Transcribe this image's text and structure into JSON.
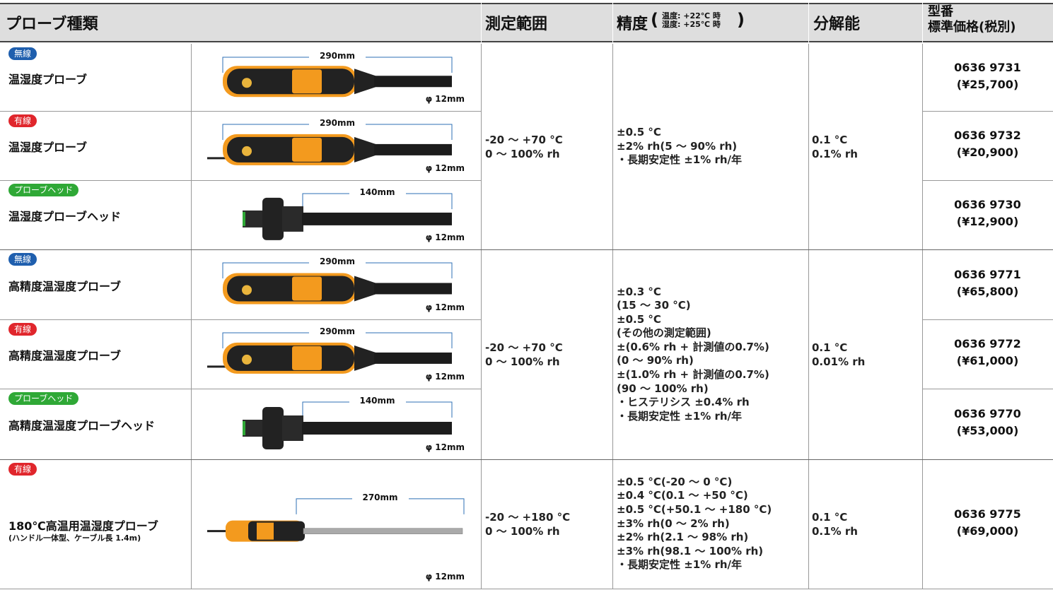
{
  "header": {
    "probe_type": "プローブ種類",
    "range": "測定範囲",
    "accuracy": "精度",
    "accuracy_paren_open": "(",
    "accuracy_note": [
      "温度: +22℃ 時",
      "湿度: +25℃ 時"
    ],
    "accuracy_paren_close": ")",
    "resolution": "分解能",
    "model": [
      "型番",
      "標準価格(税別)"
    ]
  },
  "groups": [
    {
      "range": [
        "-20 ～ +70 °C",
        "0 ～ 100% rh"
      ],
      "accuracy": [
        "±0.5 °C",
        "±2% rh(5 ～ 90% rh)",
        "・長期安定性 ±1% rh/年"
      ],
      "resolution": [
        "0.1 °C",
        "0.1% rh"
      ],
      "products": [
        {
          "badge": "無線",
          "badge_color": "#1f5fae",
          "name": "温湿度プローブ",
          "length": "290mm",
          "diameter": "φ 12mm",
          "model": "0636 9731",
          "price": "(¥25,700)"
        },
        {
          "badge": "有線",
          "badge_color": "#e0262c",
          "name": "温湿度プローブ",
          "length": "290mm",
          "diameter": "φ 12mm",
          "model": "0636 9732",
          "price": "(¥20,900)"
        },
        {
          "badge": "プローブヘッド",
          "badge_color": "#2fa836",
          "name": "温湿度プローブヘッド",
          "length": "140mm",
          "diameter": "φ 12mm",
          "model": "0636 9730",
          "price": "(¥12,900)"
        }
      ]
    },
    {
      "range": [
        "-20 ～ +70 °C",
        "0 ～ 100% rh"
      ],
      "accuracy": [
        "±0.3 °C",
        "(15 ～ 30 °C)",
        "±0.5 °C",
        "(その他の測定範囲)",
        "±(0.6% rh + 計測値の0.7%)",
        "(0 ～ 90% rh)",
        "±(1.0% rh + 計測値の0.7%)",
        "(90 ～ 100% rh)",
        "・ヒステリシス ±0.4% rh",
        "・長期安定性 ±1% rh/年"
      ],
      "resolution": [
        "0.1 °C",
        "0.01% rh"
      ],
      "products": [
        {
          "badge": "無線",
          "badge_color": "#1f5fae",
          "name": "高精度温湿度プローブ",
          "length": "290mm",
          "diameter": "φ 12mm",
          "model": "0636 9771",
          "price": "(¥65,800)"
        },
        {
          "badge": "有線",
          "badge_color": "#e0262c",
          "name": "高精度温湿度プローブ",
          "length": "290mm",
          "diameter": "φ 12mm",
          "model": "0636 9772",
          "price": "(¥61,000)"
        },
        {
          "badge": "プローブヘッド",
          "badge_color": "#2fa836",
          "name": "高精度温湿度プローブヘッド",
          "length": "140mm",
          "diameter": "φ 12mm",
          "model": "0636 9770",
          "price": "(¥53,000)"
        }
      ]
    },
    {
      "range": [
        "-20 ～ +180 °C",
        "0 ～ 100% rh"
      ],
      "accuracy": [
        "±0.5 °C(-20 ～ 0 °C)",
        "±0.4 °C(0.1 ～ +50 °C)",
        "±0.5 °C(+50.1 ～ +180 °C)",
        "±3% rh(0 ～ 2% rh)",
        "±2% rh(2.1 ～ 98% rh)",
        "±3% rh(98.1 ～ 100% rh)",
        "・長期安定性 ±1% rh/年"
      ],
      "resolution": [
        "0.1 °C",
        "0.1% rh"
      ],
      "products": [
        {
          "badge": "有線",
          "badge_color": "#e0262c",
          "name": "180℃高温用温湿度プローブ",
          "note": "(ハンドル一体型、ケーブル長 1.4m)",
          "length": "270mm",
          "diameter": "φ 12mm",
          "model": "0636 9775",
          "price": "(¥69,000)"
        }
      ]
    }
  ]
}
